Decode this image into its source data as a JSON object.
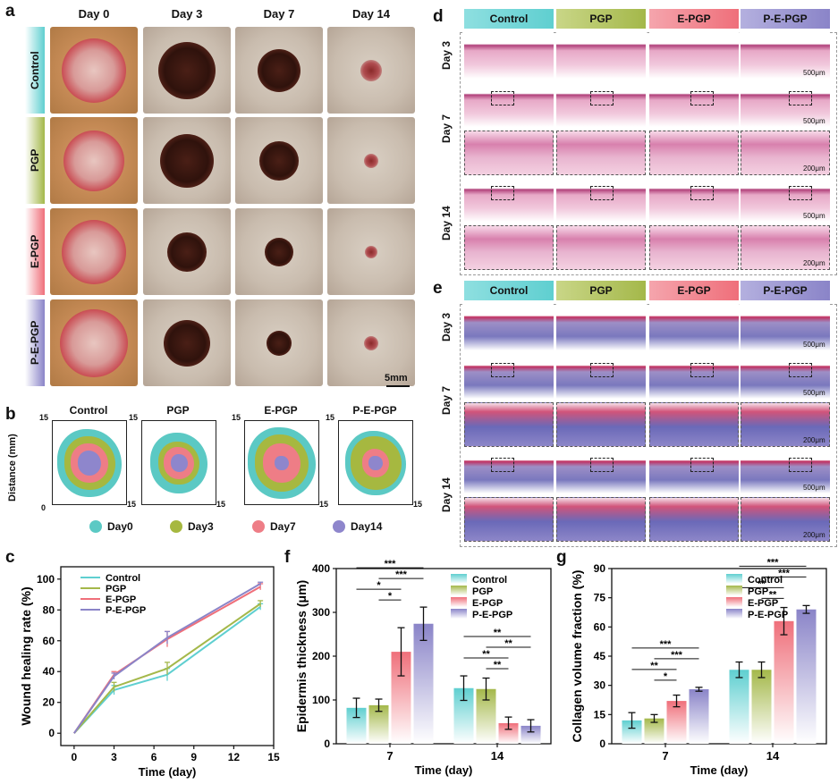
{
  "panel_a": {
    "letter": "a",
    "days": [
      "Day 0",
      "Day 3",
      "Day 7",
      "Day 14"
    ],
    "groups": [
      "Control",
      "PGP",
      "E-PGP",
      "P-E-PGP"
    ],
    "scale_bar": "5mm"
  },
  "panel_b": {
    "letter": "b",
    "groups": [
      "Control",
      "PGP",
      "E-PGP",
      "P-E-PGP"
    ],
    "ylabel": "Distance (mm)",
    "axis_max": "15",
    "axis_zero": "0",
    "legend": [
      "Day0",
      "Day3",
      "Day7",
      "Day14"
    ]
  },
  "panel_d": {
    "letter": "d",
    "groups": [
      "Control",
      "PGP",
      "E-PGP",
      "P-E-PGP"
    ],
    "rows": [
      "Day 3",
      "Day 7",
      "Day 14"
    ],
    "scale_large": "500μm",
    "scale_small": "200μm"
  },
  "panel_e": {
    "letter": "e",
    "groups": [
      "Control",
      "PGP",
      "E-PGP",
      "P-E-PGP"
    ],
    "rows": [
      "Day 3",
      "Day 7",
      "Day 14"
    ],
    "scale_large": "500μm",
    "scale_small": "200μm"
  },
  "colors": {
    "control": "#5fcfd0",
    "pgp": "#a4b84a",
    "epgp": "#ef6f7a",
    "pepgp": "#8a84c8",
    "day0": "#5bc9c4",
    "day3": "#a6b840",
    "day7": "#ee7d86",
    "day14": "#8e86cc"
  },
  "chart_data": [
    {
      "panel": "c",
      "type": "line",
      "title": "",
      "xlabel": "Time (day)",
      "ylabel": "Wound healing rate (%)",
      "xlim": [
        -1,
        15
      ],
      "ylim": [
        -8,
        108
      ],
      "xticks": [
        0,
        3,
        6,
        9,
        12,
        15
      ],
      "yticks": [
        0,
        20,
        40,
        60,
        80,
        100
      ],
      "x": [
        0,
        3,
        7,
        14
      ],
      "series": [
        {
          "name": "Control",
          "values": [
            0,
            28,
            38,
            82
          ],
          "errors": [
            0,
            3,
            4,
            2
          ]
        },
        {
          "name": "PGP",
          "values": [
            0,
            30,
            42,
            84
          ],
          "errors": [
            0,
            3,
            4,
            2
          ]
        },
        {
          "name": "E-PGP",
          "values": [
            0,
            38,
            61,
            95
          ],
          "errors": [
            0,
            2,
            5,
            2
          ]
        },
        {
          "name": "P-E-PGP",
          "values": [
            0,
            37,
            62,
            97
          ],
          "errors": [
            0,
            2,
            4,
            1
          ]
        }
      ]
    },
    {
      "panel": "f",
      "type": "bar",
      "title": "",
      "xlabel": "Time (day)",
      "ylabel": "Epidermis thickness (μm)",
      "ylim": [
        0,
        400
      ],
      "yticks": [
        0,
        100,
        200,
        300,
        400
      ],
      "categories": [
        "7",
        "14"
      ],
      "series": [
        {
          "name": "Control",
          "values": [
            82,
            127
          ],
          "errors": [
            22,
            28
          ]
        },
        {
          "name": "PGP",
          "values": [
            88,
            125
          ],
          "errors": [
            14,
            25
          ]
        },
        {
          "name": "E-PGP",
          "values": [
            210,
            47
          ],
          "errors": [
            55,
            14
          ]
        },
        {
          "name": "P-E-PGP",
          "values": [
            274,
            41
          ],
          "errors": [
            38,
            14
          ]
        }
      ],
      "significance": [
        {
          "cat": 0,
          "from": 0,
          "to": 3,
          "label": "***"
        },
        {
          "cat": 0,
          "from": 1,
          "to": 3,
          "label": "***"
        },
        {
          "cat": 0,
          "from": 0,
          "to": 2,
          "label": "*"
        },
        {
          "cat": 0,
          "from": 1,
          "to": 2,
          "label": "*"
        },
        {
          "cat": 1,
          "from": 0,
          "to": 3,
          "label": "**"
        },
        {
          "cat": 1,
          "from": 1,
          "to": 3,
          "label": "**"
        },
        {
          "cat": 1,
          "from": 0,
          "to": 2,
          "label": "**"
        },
        {
          "cat": 1,
          "from": 1,
          "to": 2,
          "label": "**"
        }
      ]
    },
    {
      "panel": "g",
      "type": "bar",
      "title": "",
      "xlabel": "Time (day)",
      "ylabel": "Collagen volume fraction (%)",
      "ylim": [
        0,
        90
      ],
      "yticks": [
        0,
        15,
        30,
        45,
        60,
        75,
        90
      ],
      "categories": [
        "7",
        "14"
      ],
      "series": [
        {
          "name": "Control",
          "values": [
            12,
            38
          ],
          "errors": [
            4,
            4
          ]
        },
        {
          "name": "PGP",
          "values": [
            13,
            38
          ],
          "errors": [
            2,
            4
          ]
        },
        {
          "name": "E-PGP",
          "values": [
            22,
            63
          ],
          "errors": [
            3,
            7
          ]
        },
        {
          "name": "P-E-PGP",
          "values": [
            28,
            69
          ],
          "errors": [
            1,
            2
          ]
        }
      ],
      "significance": [
        {
          "cat": 0,
          "from": 0,
          "to": 3,
          "label": "***"
        },
        {
          "cat": 0,
          "from": 1,
          "to": 3,
          "label": "***"
        },
        {
          "cat": 0,
          "from": 0,
          "to": 2,
          "label": "**"
        },
        {
          "cat": 0,
          "from": 1,
          "to": 2,
          "label": "*"
        },
        {
          "cat": 1,
          "from": 0,
          "to": 3,
          "label": "***"
        },
        {
          "cat": 1,
          "from": 1,
          "to": 3,
          "label": "***"
        },
        {
          "cat": 1,
          "from": 0,
          "to": 2,
          "label": "**"
        },
        {
          "cat": 1,
          "from": 1,
          "to": 2,
          "label": "**"
        }
      ]
    }
  ]
}
